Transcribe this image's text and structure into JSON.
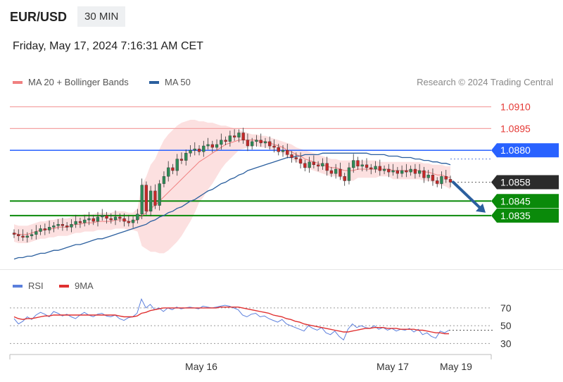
{
  "header": {
    "symbol": "EUR/USD",
    "timeframe": "30 MIN"
  },
  "timestamp": "Friday, May 17, 2024 7:16:31 AM CET",
  "legend": {
    "ma20": {
      "label": "MA 20 + Bollinger Bands",
      "color": "#f08080"
    },
    "ma50": {
      "label": "MA 50",
      "color": "#2b5f9e"
    }
  },
  "credit": "Research © 2024 Trading Central",
  "rsi_legend": {
    "rsi": {
      "label": "RSI",
      "color": "#5b7fdc"
    },
    "ma9": {
      "label": "9MA",
      "color": "#e03030"
    }
  },
  "colors": {
    "up": "#2e8b57",
    "down": "#c62828",
    "band": "#fbd3d3",
    "blueLevel": "#2962ff",
    "greenLevel": "#0a8a0a",
    "arrow": "#2b5f9e"
  },
  "chart_data": [
    {
      "type": "candlestick",
      "ylim": [
        1.0798,
        1.0918
      ],
      "x_ticks": [
        "May 16",
        "May 17",
        "May 19"
      ],
      "levels": [
        {
          "value": 1.091,
          "label": "1.0910",
          "kind": "resistance"
        },
        {
          "value": 1.0895,
          "label": "1.0895",
          "kind": "resistance"
        },
        {
          "value": 1.088,
          "label": "1.0880",
          "kind": "pivot"
        },
        {
          "value": 1.0858,
          "label": "1.0858",
          "kind": "last"
        },
        {
          "value": 1.0845,
          "label": "1.0845",
          "kind": "support"
        },
        {
          "value": 1.0835,
          "label": "1.0835",
          "kind": "support"
        }
      ],
      "close": [
        1.0822,
        1.0821,
        1.082,
        1.0821,
        1.0822,
        1.0824,
        1.0826,
        1.0825,
        1.0827,
        1.0828,
        1.0829,
        1.0828,
        1.0827,
        1.0829,
        1.0831,
        1.083,
        1.0832,
        1.0833,
        1.0831,
        1.0834,
        1.0835,
        1.0833,
        1.0832,
        1.0834,
        1.0833,
        1.0831,
        1.083,
        1.0832,
        1.0836,
        1.0856,
        1.0838,
        1.0852,
        1.0842,
        1.0857,
        1.0862,
        1.0868,
        1.0866,
        1.0874,
        1.0873,
        1.0878,
        1.088,
        1.0881,
        1.0879,
        1.0883,
        1.0884,
        1.0882,
        1.0884,
        1.0887,
        1.0886,
        1.089,
        1.0889,
        1.0892,
        1.0887,
        1.0883,
        1.0886,
        1.0887,
        1.0885,
        1.0886,
        1.0883,
        1.0882,
        1.0879,
        1.088,
        1.0877,
        1.0875,
        1.0874,
        1.0871,
        1.0868,
        1.0872,
        1.087,
        1.0869,
        1.0871,
        1.0866,
        1.0864,
        1.0867,
        1.0862,
        1.0859,
        1.0868,
        1.0873,
        1.0869,
        1.087,
        1.0868,
        1.0867,
        1.0869,
        1.0866,
        1.0867,
        1.0865,
        1.0866,
        1.0864,
        1.0866,
        1.0865,
        1.0867,
        1.0864,
        1.0866,
        1.0861,
        1.0863,
        1.0859,
        1.0857,
        1.0862,
        1.086,
        1.0858
      ],
      "ma20": [
        1.0823,
        1.0822,
        1.0822,
        1.0822,
        1.0823,
        1.0824,
        1.0825,
        1.0825,
        1.0826,
        1.0826,
        1.0827,
        1.0827,
        1.0827,
        1.0828,
        1.0829,
        1.0829,
        1.083,
        1.083,
        1.083,
        1.0831,
        1.0831,
        1.0831,
        1.0831,
        1.0832,
        1.0832,
        1.0832,
        1.0831,
        1.0831,
        1.0832,
        1.0835,
        1.0837,
        1.084,
        1.0842,
        1.0845,
        1.0848,
        1.0851,
        1.0854,
        1.0857,
        1.086,
        1.0863,
        1.0866,
        1.0869,
        1.0872,
        1.0874,
        1.0876,
        1.0878,
        1.088,
        1.0882,
        1.0884,
        1.0885,
        1.0886,
        1.0887,
        1.0887,
        1.0887,
        1.0887,
        1.0887,
        1.0886,
        1.0886,
        1.0885,
        1.0884,
        1.0883,
        1.0882,
        1.088,
        1.0879,
        1.0877,
        1.0876,
        1.0874,
        1.0873,
        1.0872,
        1.0871,
        1.087,
        1.0869,
        1.0868,
        1.0868,
        1.0867,
        1.0866,
        1.0866,
        1.0866,
        1.0867,
        1.0867,
        1.0867,
        1.0867,
        1.0867,
        1.0867,
        1.0867,
        1.0867,
        1.0866,
        1.0866,
        1.0866,
        1.0866,
        1.0866,
        1.0866,
        1.0866,
        1.0865,
        1.0865,
        1.0864,
        1.0863,
        1.0863,
        1.0862,
        1.0861
      ],
      "upper_band": [
        1.0829,
        1.0828,
        1.0828,
        1.0828,
        1.0829,
        1.083,
        1.0831,
        1.0831,
        1.0832,
        1.0832,
        1.0833,
        1.0833,
        1.0833,
        1.0834,
        1.0835,
        1.0835,
        1.0836,
        1.0836,
        1.0836,
        1.0837,
        1.0837,
        1.0837,
        1.0837,
        1.0838,
        1.0838,
        1.0838,
        1.0837,
        1.0837,
        1.084,
        1.0856,
        1.0862,
        1.087,
        1.0874,
        1.0881,
        1.0887,
        1.0891,
        1.0894,
        1.0897,
        1.0899,
        1.09,
        1.0901,
        1.0901,
        1.09,
        1.09,
        1.0899,
        1.0899,
        1.0898,
        1.0897,
        1.0897,
        1.0896,
        1.0895,
        1.0894,
        1.0893,
        1.0892,
        1.0891,
        1.0891,
        1.089,
        1.089,
        1.0889,
        1.0888,
        1.0887,
        1.0886,
        1.0885,
        1.0884,
        1.0882,
        1.0881,
        1.088,
        1.0879,
        1.0878,
        1.0877,
        1.0876,
        1.0875,
        1.0874,
        1.0874,
        1.0873,
        1.0873,
        1.0873,
        1.0873,
        1.0873,
        1.0873,
        1.0873,
        1.0873,
        1.0873,
        1.0872,
        1.0872,
        1.0872,
        1.0872,
        1.0872,
        1.0872,
        1.0872,
        1.0872,
        1.0872,
        1.0872,
        1.0871,
        1.0871,
        1.087,
        1.087,
        1.087,
        1.0869,
        1.0869
      ],
      "lower_band": [
        1.0817,
        1.0816,
        1.0816,
        1.0816,
        1.0817,
        1.0818,
        1.0819,
        1.0819,
        1.082,
        1.082,
        1.0821,
        1.0821,
        1.0821,
        1.0822,
        1.0823,
        1.0823,
        1.0824,
        1.0824,
        1.0824,
        1.0825,
        1.0825,
        1.0825,
        1.0825,
        1.0826,
        1.0826,
        1.0826,
        1.0825,
        1.0825,
        1.0824,
        1.0814,
        1.0812,
        1.081,
        1.081,
        1.0809,
        1.0809,
        1.0811,
        1.0814,
        1.0817,
        1.0821,
        1.0826,
        1.0831,
        1.0837,
        1.0844,
        1.0848,
        1.0853,
        1.0857,
        1.0862,
        1.0867,
        1.0871,
        1.0874,
        1.0877,
        1.088,
        1.0881,
        1.0882,
        1.0883,
        1.0883,
        1.0882,
        1.0882,
        1.0881,
        1.088,
        1.0879,
        1.0878,
        1.0875,
        1.0874,
        1.0872,
        1.0871,
        1.0868,
        1.0867,
        1.0866,
        1.0865,
        1.0864,
        1.0863,
        1.0862,
        1.0862,
        1.0861,
        1.0859,
        1.0859,
        1.0859,
        1.0861,
        1.0861,
        1.0861,
        1.0861,
        1.0861,
        1.0862,
        1.0862,
        1.0862,
        1.086,
        1.086,
        1.086,
        1.086,
        1.086,
        1.086,
        1.086,
        1.0859,
        1.0859,
        1.0858,
        1.0856,
        1.0856,
        1.0855,
        1.0853
      ],
      "ma50": [
        1.0805,
        1.0806,
        1.0806,
        1.0807,
        1.0807,
        1.0808,
        1.0809,
        1.0809,
        1.081,
        1.0811,
        1.0811,
        1.0812,
        1.0813,
        1.0814,
        1.0815,
        1.0815,
        1.0816,
        1.0817,
        1.0818,
        1.0819,
        1.0819,
        1.082,
        1.0821,
        1.0822,
        1.0823,
        1.0824,
        1.0825,
        1.0826,
        1.0827,
        1.0828,
        1.0829,
        1.0831,
        1.0832,
        1.0834,
        1.0835,
        1.0837,
        1.0838,
        1.084,
        1.0841,
        1.0843,
        1.0845,
        1.0846,
        1.0848,
        1.085,
        1.0852,
        1.0853,
        1.0855,
        1.0857,
        1.0858,
        1.086,
        1.0861,
        1.0863,
        1.0864,
        1.0866,
        1.0867,
        1.0868,
        1.0869,
        1.087,
        1.0871,
        1.0872,
        1.0873,
        1.0874,
        1.0875,
        1.0875,
        1.0876,
        1.0876,
        1.0877,
        1.0877,
        1.0877,
        1.0877,
        1.0878,
        1.0878,
        1.0878,
        1.0878,
        1.0878,
        1.0878,
        1.0878,
        1.0878,
        1.0878,
        1.0878,
        1.0878,
        1.0877,
        1.0877,
        1.0877,
        1.0877,
        1.0876,
        1.0876,
        1.0876,
        1.0875,
        1.0875,
        1.0875,
        1.0874,
        1.0874,
        1.0873,
        1.0873,
        1.0872,
        1.0872,
        1.0871,
        1.0871,
        1.087
      ]
    },
    {
      "type": "line",
      "name": "RSI",
      "ylim": [
        20,
        85
      ],
      "y_ticks": [
        30,
        50,
        70
      ],
      "current": 45,
      "rsi": [
        58,
        52,
        55,
        60,
        57,
        62,
        65,
        63,
        60,
        66,
        64,
        61,
        63,
        60,
        58,
        62,
        65,
        62,
        60,
        63,
        64,
        61,
        60,
        62,
        58,
        56,
        59,
        60,
        64,
        80,
        70,
        74,
        68,
        70,
        66,
        70,
        68,
        71,
        69,
        70,
        71,
        70,
        69,
        72,
        71,
        70,
        71,
        72,
        73,
        72,
        70,
        68,
        62,
        60,
        63,
        64,
        60,
        61,
        58,
        56,
        54,
        57,
        52,
        50,
        48,
        46,
        44,
        50,
        47,
        45,
        48,
        42,
        40,
        44,
        38,
        34,
        46,
        52,
        48,
        50,
        48,
        47,
        50,
        46,
        48,
        45,
        47,
        44,
        46,
        45,
        47,
        43,
        46,
        40,
        42,
        38,
        36,
        44,
        42,
        45
      ],
      "ma9": [
        60,
        58,
        57,
        58,
        58,
        59,
        60,
        61,
        61,
        62,
        62,
        62,
        62,
        62,
        62,
        62,
        62,
        62,
        62,
        62,
        62,
        62,
        62,
        62,
        61,
        60,
        60,
        60,
        61,
        64,
        65,
        67,
        68,
        69,
        70,
        70,
        70,
        70,
        70,
        70,
        70,
        70,
        70,
        70,
        70,
        70,
        70,
        71,
        71,
        71,
        71,
        71,
        70,
        69,
        68,
        67,
        66,
        65,
        64,
        62,
        61,
        60,
        58,
        57,
        55,
        54,
        52,
        51,
        50,
        49,
        48,
        47,
        46,
        45,
        44,
        43,
        43,
        44,
        45,
        46,
        47,
        47,
        48,
        48,
        48,
        47,
        47,
        47,
        46,
        46,
        46,
        46,
        45,
        45,
        44,
        43,
        42,
        42,
        41,
        41
      ]
    }
  ]
}
